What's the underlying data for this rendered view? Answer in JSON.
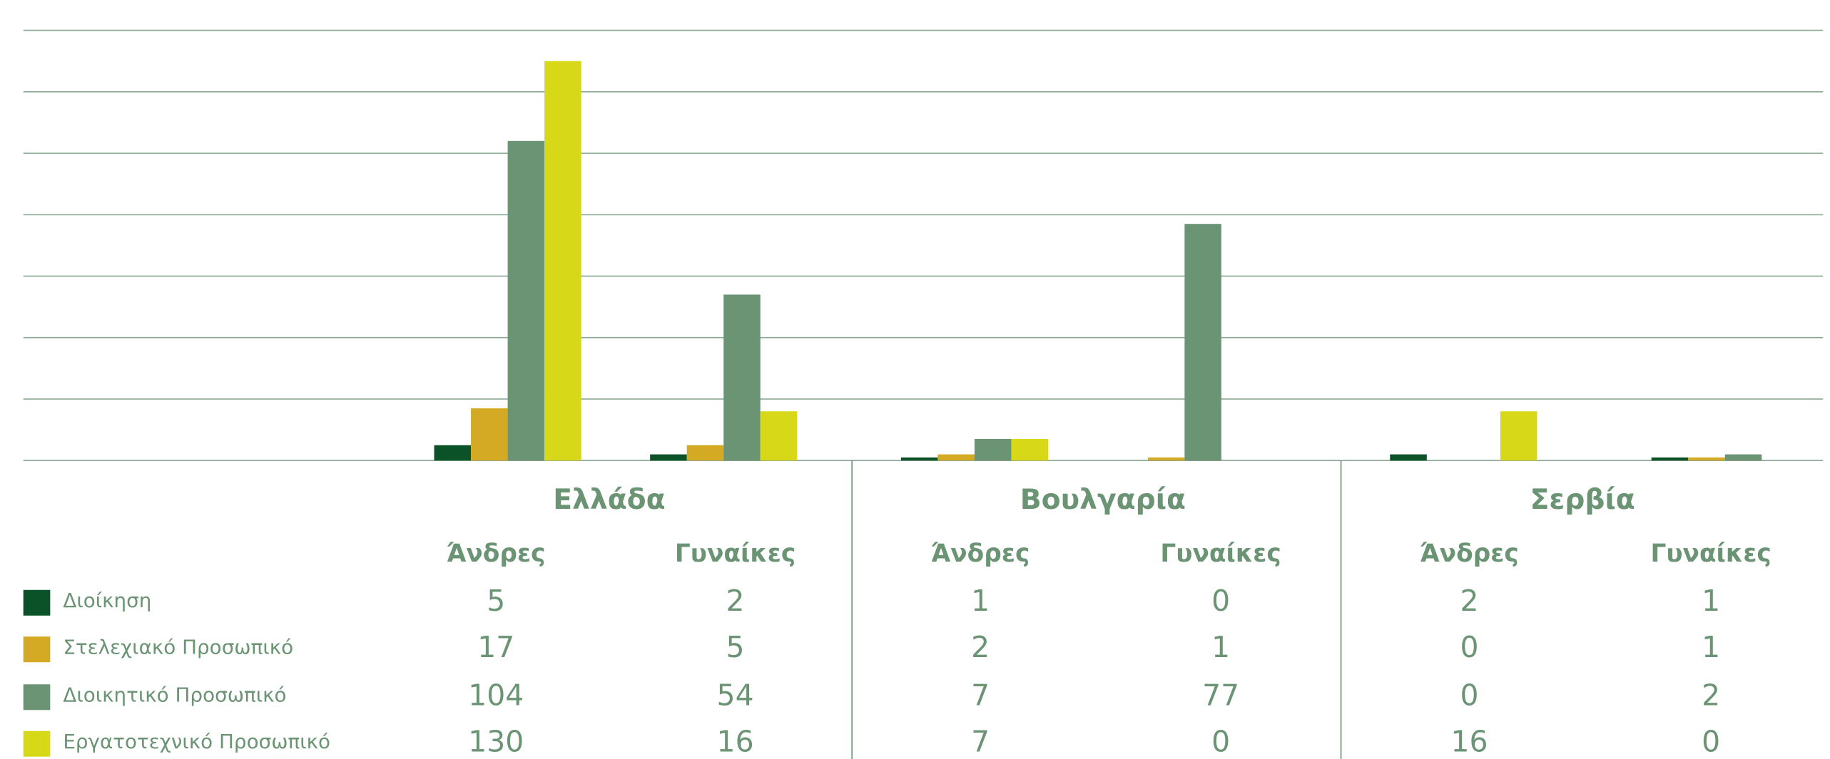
{
  "chart_data": {
    "type": "grouped_bar",
    "groups": [
      "Ελλάδα",
      "Βουλγαρία",
      "Σερβία"
    ],
    "subgroups": [
      "Άνδρες",
      "Γυναίκες"
    ],
    "series": [
      {
        "name": "Διοίκηση",
        "color": "#0b5229",
        "values": [
          5,
          2,
          1,
          0,
          2,
          1
        ]
      },
      {
        "name": "Στελεχιακό Προσωπικό",
        "color": "#d4a923",
        "values": [
          17,
          5,
          2,
          1,
          0,
          1
        ]
      },
      {
        "name": "Διοικητικό Προσωπικό",
        "color": "#6b9474",
        "values": [
          104,
          54,
          7,
          77,
          0,
          2
        ]
      },
      {
        "name": "Εργατοτεχνικό Προσωπικό",
        "color": "#d7d818",
        "values": [
          130,
          16,
          7,
          0,
          16,
          0
        ]
      }
    ],
    "ylim": [
      0,
      140
    ],
    "yticks": [
      0,
      20,
      40,
      60,
      80,
      100,
      120,
      140
    ],
    "grid": true
  }
}
